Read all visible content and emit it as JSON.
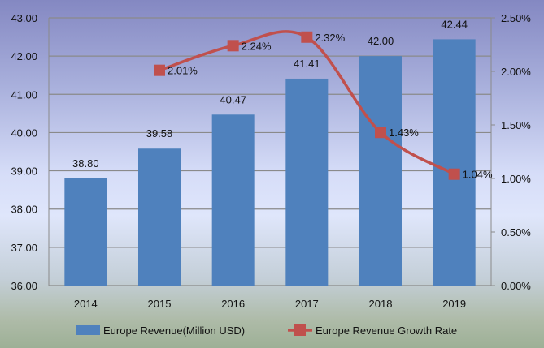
{
  "chart_data": {
    "type": "bar+line",
    "categories": [
      "2014",
      "2015",
      "2016",
      "2017",
      "2018",
      "2019"
    ],
    "series": [
      {
        "name": "Europe Revenue(Million USD)",
        "type": "bar",
        "axis": "left",
        "color": "#4f81bd",
        "values": [
          38.8,
          39.58,
          40.47,
          41.41,
          42.0,
          42.44
        ],
        "labels": [
          "38.80",
          "39.58",
          "40.47",
          "41.41",
          "42.00",
          "42.44"
        ]
      },
      {
        "name": "Europe Revenue Growth Rate",
        "type": "line",
        "axis": "right",
        "color": "#c0504d",
        "smooth": true,
        "values": [
          null,
          2.01,
          2.24,
          2.32,
          1.43,
          1.04
        ],
        "labels": [
          "",
          "2.01%",
          "2.24%",
          "2.32%",
          "1.43%",
          "1.04%"
        ]
      }
    ],
    "ylim": [
      36,
      43
    ],
    "yticks": [
      "36.00",
      "37.00",
      "38.00",
      "39.00",
      "40.00",
      "41.00",
      "42.00",
      "43.00"
    ],
    "y2lim": [
      0,
      2.5
    ],
    "y2ticks": [
      "0.00%",
      "0.50%",
      "1.00%",
      "1.50%",
      "2.00%",
      "2.50%"
    ],
    "grid": true,
    "legend": "bottom"
  }
}
